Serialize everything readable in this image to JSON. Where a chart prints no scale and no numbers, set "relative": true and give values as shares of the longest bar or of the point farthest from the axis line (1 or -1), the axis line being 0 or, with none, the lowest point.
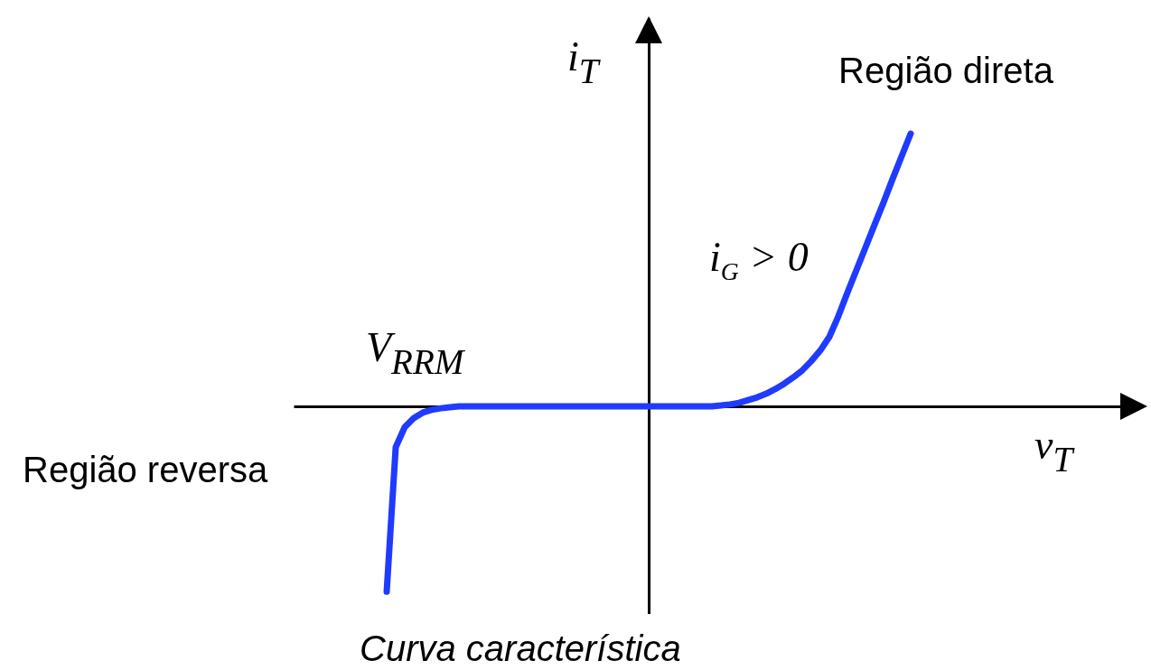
{
  "chart_data": {
    "type": "line",
    "relative": true,
    "color": "#1f3bff",
    "xlabel": "v$_{T}$",
    "ylabel": "i$_{T}$",
    "annotations": [
      "Região direta",
      "i$_{G}$ > 0",
      "V$_{RRM}$",
      "Região reversa",
      "Curva característica"
    ],
    "categories": [
      null,
      null,
      null,
      null,
      null,
      null,
      null,
      null,
      null,
      null,
      null,
      null,
      null,
      null,
      null,
      null,
      null,
      null,
      null,
      null,
      null,
      null,
      null,
      null,
      null,
      null,
      null,
      null,
      null,
      null,
      null,
      null,
      null,
      null,
      null,
      null,
      null,
      null,
      null,
      null,
      null,
      null,
      null,
      null,
      null,
      null,
      null,
      null,
      null,
      null,
      null,
      null,
      null,
      null,
      null,
      null,
      null,
      null,
      null
    ],
    "values": [
      -0.68,
      -0.15,
      -0.076,
      -0.043,
      -0.023,
      -0.013,
      -0.007,
      -0.003,
      0,
      0,
      0,
      0,
      0,
      0,
      0,
      0,
      0,
      0,
      0,
      0,
      0,
      0,
      0,
      0,
      0,
      0,
      0,
      0,
      0,
      0,
      0,
      0,
      0,
      0,
      0,
      0,
      0,
      0.003,
      0.007,
      0.013,
      0.023,
      0.033,
      0.046,
      0.063,
      0.083,
      0.106,
      0.132,
      0.166,
      0.205,
      0.255,
      0.331,
      0.417,
      0.5,
      0.583,
      0.666,
      0.748,
      0.834,
      0.917,
      1
    ]
  }
}
